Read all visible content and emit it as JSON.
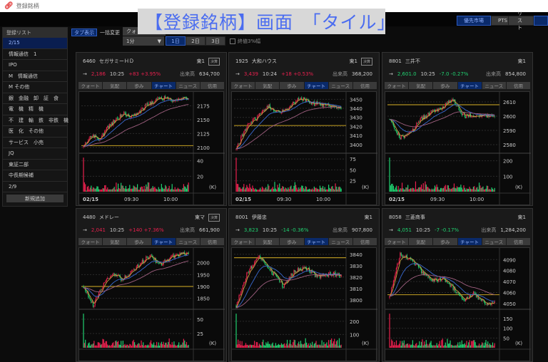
{
  "window": {
    "title": "登録銘柄",
    "icon": "link-icon"
  },
  "overlay_caption": "【登録銘柄】画面　「タイル」",
  "top_buttons": {
    "priority_market": "優先市場",
    "pts": "PTS",
    "list": "リスト"
  },
  "sidebar": {
    "header": "登録リスト",
    "items": [
      "2/15",
      "情報通信　1",
      "IPO",
      "M　情報通信",
      "M その他",
      "銀　金融　卸　証　食",
      "電　機　精　機",
      "不　建　輸　鉄　非鉄　機",
      "医　化　その他",
      "サービス　小売",
      "JQ",
      "東証二部",
      "中長期候補",
      "2/9"
    ],
    "add_button": "新規追加"
  },
  "toolbar": {
    "tab_view": "タブ表示",
    "bulk_change": "一括変更",
    "bulk_select": "クォ",
    "interval": "1分",
    "days": [
      "1日",
      "2日",
      "3日"
    ],
    "close_range_checkbox": "終値3%幅"
  },
  "tile_tabs": [
    "クォート",
    "気配",
    "歩み",
    "チャート",
    "ニュース",
    "信用"
  ],
  "colors": {
    "up": "#e8204e",
    "down": "#20d070",
    "accent": "#0a2a6a",
    "ma_short": "#c8a040",
    "ma_mid": "#3a6ad0",
    "ma_long": "#a06080",
    "ref_line": "#b09020"
  },
  "tiles": [
    {
      "code": "6460",
      "name": "セガサミーＨＤ",
      "market": "東1",
      "kessan": "決算",
      "arrow": "→",
      "price": "2,186",
      "time": "10:25",
      "change": "+83 +3.95%",
      "dir": "up",
      "volume_label": "出来高",
      "volume": "634,700",
      "chart": {
        "ylim": [
          2092,
          2195
        ],
        "y_ticks": [
          2100,
          2125,
          2150,
          2175
        ],
        "ref": 2103,
        "path": [
          2100,
          2120,
          2116,
          2135,
          2150,
          2160,
          2156,
          2165,
          2178,
          2186,
          2190,
          2184,
          2189,
          2186
        ],
        "vol_ylim": [
          0,
          48
        ],
        "vol_ticks": [
          20,
          40
        ],
        "vol_unit": "(K)",
        "x_labels": [
          "02/15",
          "09:30",
          "10:00"
        ]
      }
    },
    {
      "code": "1925",
      "name": "大和ハウス",
      "market": "東1",
      "kessan": "決算",
      "arrow": "→",
      "price": "3,439",
      "time": "10:24",
      "change": "+18 +0.53%",
      "dir": "up",
      "volume_label": "出来高",
      "volume": "368,200",
      "chart": {
        "ylim": [
          3392,
          3455
        ],
        "y_ticks": [
          3400,
          3410,
          3420,
          3430,
          3440,
          3450
        ],
        "ref": 3421,
        "path": [
          3395,
          3420,
          3430,
          3443,
          3435,
          3440,
          3452,
          3447,
          3444,
          3443,
          3438
        ],
        "vol_ylim": [
          0,
          85
        ],
        "vol_ticks": [
          25,
          50,
          75
        ],
        "vol_unit": "(K)",
        "x_labels": [
          "02/15",
          "09:30",
          "10:00"
        ]
      }
    },
    {
      "code": "8801",
      "name": "三井不",
      "market": "東1",
      "kessan": "",
      "arrow": "→",
      "price": "2,601.0",
      "time": "10:25",
      "change": "-7.0 -0.27%",
      "dir": "dn",
      "volume_label": "出来高",
      "volume": "854,800",
      "chart": {
        "ylim": [
          2575,
          2615
        ],
        "y_ticks": [
          2580,
          2590,
          2600,
          2610
        ],
        "ref": 2608,
        "path": [
          2598,
          2585,
          2588,
          2598,
          2603,
          2606,
          2612,
          2600,
          2601,
          2600,
          2601
        ],
        "vol_ylim": [
          0,
          240
        ],
        "vol_ticks": [
          100,
          200
        ],
        "vol_unit": "(K)",
        "x_labels": [
          "02/15",
          "09:30",
          "10:00"
        ]
      }
    },
    {
      "code": "4480",
      "name": "メドレー",
      "market": "東マ",
      "kessan": "決算",
      "arrow": "→",
      "price": "2,041",
      "time": "10:25",
      "change": "+140 +7.36%",
      "dir": "up",
      "volume_label": "出来高",
      "volume": "661,900",
      "chart": {
        "ylim": [
          1810,
          2050
        ],
        "y_ticks": [
          1850,
          1900,
          1950,
          2000
        ],
        "ref": 1900,
        "path": [
          1900,
          1820,
          1900,
          1960,
          1930,
          1960,
          2000,
          2030,
          1990,
          2020,
          2035,
          2040
        ],
        "vol_ylim": [
          0,
          65
        ],
        "vol_ticks": [
          25,
          50
        ],
        "vol_unit": "(K)",
        "x_labels": []
      }
    },
    {
      "code": "8001",
      "name": "伊藤忠",
      "market": "東1",
      "kessan": "",
      "arrow": "→",
      "price": "3,823",
      "time": "10:25",
      "change": "-14 -0.36%",
      "dir": "dn",
      "volume_label": "出来高",
      "volume": "907,800",
      "chart": {
        "ylim": [
          3793,
          3843
        ],
        "y_ticks": [
          3800,
          3810,
          3820,
          3830,
          3840
        ],
        "ref": 3837,
        "path": [
          3795,
          3825,
          3838,
          3825,
          3812,
          3825,
          3828,
          3820,
          3823,
          3822
        ],
        "vol_ylim": [
          0,
          280
        ],
        "vol_ticks": [
          100,
          200
        ],
        "vol_unit": "(K)",
        "x_labels": []
      }
    },
    {
      "code": "8058",
      "name": "三菱商事",
      "market": "東1",
      "kessan": "",
      "arrow": "→",
      "price": "4,051",
      "time": "10:25",
      "change": "-7 -0.17%",
      "dir": "dn",
      "volume_label": "出来高",
      "volume": "1,284,200",
      "chart": {
        "ylim": [
          4046,
          4098
        ],
        "y_ticks": [
          4050,
          4060,
          4070,
          4080,
          4090
        ],
        "ref": 4058,
        "path": [
          4055,
          4095,
          4090,
          4080,
          4070,
          4073,
          4065,
          4052,
          4060,
          4050,
          4051
        ],
        "vol_ylim": [
          0,
          190
        ],
        "vol_ticks": [
          50,
          100,
          150
        ],
        "vol_unit": "(K)",
        "x_labels": []
      }
    }
  ]
}
